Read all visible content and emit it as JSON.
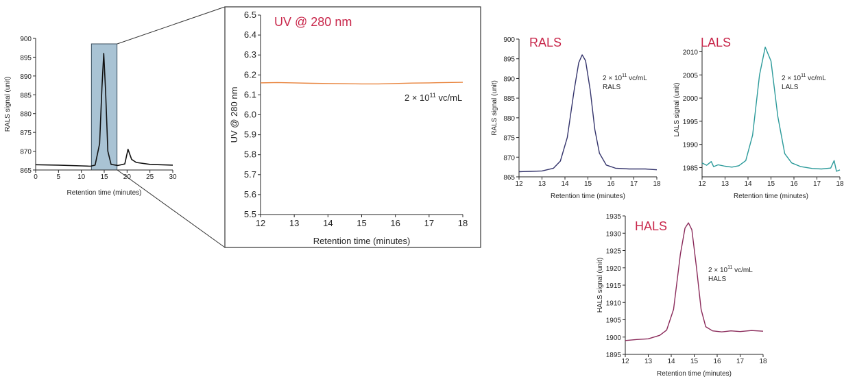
{
  "chart_data": [
    {
      "id": "overview",
      "type": "line",
      "title": "",
      "xlabel": "Retention time (minutes)",
      "ylabel": "RALS signal (unit)",
      "xlim": [
        0,
        30
      ],
      "ylim": [
        865,
        900
      ],
      "xticks": [
        0,
        5,
        10,
        15,
        20,
        25,
        30
      ],
      "yticks": [
        865,
        870,
        875,
        880,
        885,
        890,
        895,
        900
      ],
      "highlight_region": [
        12.2,
        17.8
      ],
      "series": [
        {
          "color": "#111111",
          "x": [
            0,
            5,
            10,
            12,
            13,
            14,
            14.5,
            14.9,
            15.3,
            15.8,
            16.5,
            18,
            19.5,
            20.2,
            21,
            22,
            25,
            30
          ],
          "y": [
            866.4,
            866.3,
            866.1,
            866,
            866.3,
            872,
            887,
            896,
            886,
            870,
            866.5,
            866.2,
            866.6,
            870.5,
            867.8,
            867,
            866.5,
            866.3
          ]
        }
      ],
      "annotations": []
    },
    {
      "id": "uv",
      "type": "line",
      "title": "UV @ 280 nm",
      "xlabel": "Retention time (minutes)",
      "ylabel": "UV @ 280 nm",
      "xlim": [
        12,
        18
      ],
      "ylim": [
        5.5,
        6.5
      ],
      "xticks": [
        12,
        13,
        14,
        15,
        16,
        17,
        18
      ],
      "yticks": [
        5.5,
        5.6,
        5.7,
        5.8,
        5.9,
        6.0,
        6.1,
        6.2,
        6.3,
        6.4,
        6.5
      ],
      "series": [
        {
          "color": "#e8823a",
          "x": [
            12,
            12.5,
            13,
            13.5,
            14,
            14.5,
            15,
            15.5,
            16,
            16.5,
            17,
            17.5,
            18
          ],
          "y": [
            6.16,
            6.162,
            6.16,
            6.158,
            6.157,
            6.156,
            6.155,
            6.155,
            6.157,
            6.159,
            6.16,
            6.162,
            6.163
          ]
        }
      ],
      "annotations": [
        {
          "base": "2 × 10",
          "exp": "11",
          "unit": " vc/mL",
          "extra": ""
        }
      ]
    },
    {
      "id": "rals",
      "type": "line",
      "title": "RALS",
      "xlabel": "Retention time (minutes)",
      "ylabel": "RALS signal (unit)",
      "xlim": [
        12,
        18
      ],
      "ylim": [
        865,
        900
      ],
      "xticks": [
        12,
        13,
        14,
        15,
        16,
        17,
        18
      ],
      "yticks": [
        865,
        870,
        875,
        880,
        885,
        890,
        895,
        900
      ],
      "series": [
        {
          "color": "#33336b",
          "x": [
            12,
            12.5,
            13,
            13.5,
            13.8,
            14.1,
            14.4,
            14.6,
            14.75,
            14.9,
            15.1,
            15.3,
            15.5,
            15.8,
            16.2,
            16.8,
            17.5,
            18
          ],
          "y": [
            866.3,
            866.4,
            866.5,
            867.2,
            869,
            875,
            887,
            894,
            896,
            894.5,
            887,
            877,
            871,
            868,
            867.2,
            867,
            867,
            866.8
          ]
        }
      ],
      "annotations": [
        {
          "base": "2 × 10",
          "exp": "11",
          "unit": " vc/mL",
          "extra": "RALS"
        }
      ]
    },
    {
      "id": "lals",
      "type": "line",
      "title": "LALS",
      "xlabel": "Retention time (minutes)",
      "ylabel": "LALS signal (unit)",
      "xlim": [
        12,
        18
      ],
      "ylim": [
        1983,
        2012
      ],
      "xticks": [
        12,
        13,
        14,
        15,
        16,
        17,
        18
      ],
      "yticks": [
        1985,
        1990,
        1995,
        2000,
        2005,
        2010
      ],
      "series": [
        {
          "color": "#2b9a9a",
          "x": [
            12,
            12.2,
            12.4,
            12.5,
            12.7,
            13,
            13.3,
            13.6,
            13.9,
            14.2,
            14.5,
            14.75,
            15,
            15.3,
            15.6,
            15.9,
            16.3,
            16.8,
            17.2,
            17.6,
            17.75,
            17.85,
            18
          ],
          "y": [
            1986,
            1985.5,
            1986.3,
            1985.2,
            1985.6,
            1985.3,
            1985.1,
            1985.4,
            1986.5,
            1992,
            2005,
            2011,
            2008,
            1996,
            1988,
            1986,
            1985.2,
            1984.8,
            1984.7,
            1984.9,
            1986.5,
            1984.2,
            1984.5
          ]
        }
      ],
      "annotations": [
        {
          "base": "2 × 10",
          "exp": "11",
          "unit": " vc/mL",
          "extra": "LALS"
        }
      ]
    },
    {
      "id": "hals",
      "type": "line",
      "title": "HALS",
      "xlabel": "Retention time (minutes)",
      "ylabel": "HALS signal (unit)",
      "xlim": [
        12,
        18
      ],
      "ylim": [
        1895,
        1935
      ],
      "xticks": [
        12,
        13,
        14,
        15,
        16,
        17,
        18
      ],
      "yticks": [
        1895,
        1900,
        1905,
        1910,
        1915,
        1920,
        1925,
        1930,
        1935
      ],
      "series": [
        {
          "color": "#8a2a5a",
          "x": [
            12,
            12.5,
            13,
            13.5,
            13.8,
            14.1,
            14.4,
            14.6,
            14.75,
            14.9,
            15.1,
            15.3,
            15.5,
            15.8,
            16.2,
            16.6,
            17,
            17.5,
            18
          ],
          "y": [
            1899,
            1899.3,
            1899.5,
            1900.5,
            1902,
            1908,
            1924,
            1931.5,
            1933,
            1931,
            1920,
            1908,
            1903,
            1901.8,
            1901.5,
            1901.8,
            1901.6,
            1901.9,
            1901.7
          ]
        }
      ],
      "annotations": [
        {
          "base": "2 × 10",
          "exp": "11",
          "unit": " vc/mL",
          "extra": "HALS"
        }
      ]
    }
  ]
}
